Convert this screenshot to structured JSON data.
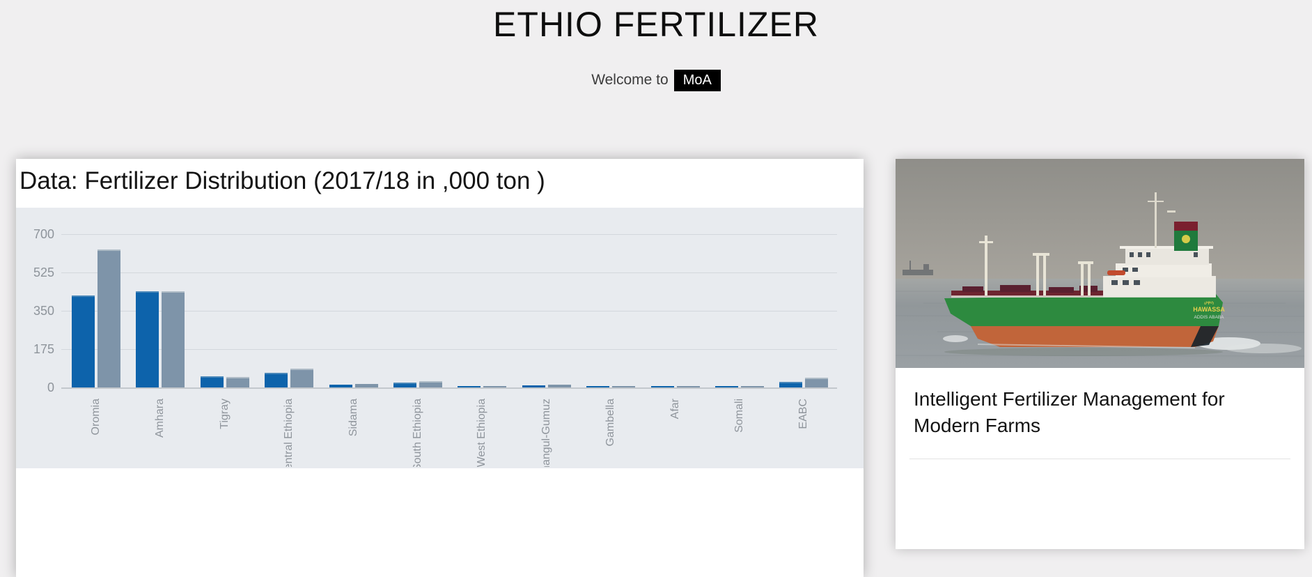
{
  "page": {
    "background": "#f0eff0"
  },
  "header": {
    "title": "ETHIO FERTILIZER",
    "welcome_text": "Welcome to",
    "badge": "MoA",
    "badge_bg": "#000000"
  },
  "chart_card": {
    "title": "Data: Fertilizer Distribution (2017/18 in ,000 ton )"
  },
  "chart_data": {
    "type": "bar",
    "title": "Data: Fertilizer Distribution (2017/18 in ,000 ton )",
    "categories": [
      "Oromia",
      "Amhara",
      "Tigray",
      "Central Ethiopia",
      "Sidama",
      "South Ethiopia",
      "West Ethiopia",
      "Benishangul-Gumuz",
      "Gambella",
      "Afar",
      "Somali",
      "EABC"
    ],
    "series": [
      {
        "name": "blue",
        "color": "#0d63ab",
        "edge": "#4987b9",
        "values": [
          420,
          440,
          50,
          68,
          13,
          21,
          4,
          11,
          6,
          5,
          5,
          25
        ]
      },
      {
        "name": "gray",
        "color": "#7e94a9",
        "edge": "#aebbc6",
        "values": [
          630,
          440,
          48,
          87,
          16,
          30,
          6,
          13,
          6,
          4,
          4,
          45
        ]
      }
    ],
    "ylim": [
      0,
      700
    ],
    "yticks": [
      0,
      175,
      350,
      525,
      700
    ],
    "grid": true,
    "legend_position": "none",
    "plot_background": "#e8ebef",
    "xlabel": "",
    "ylabel": ""
  },
  "side_card": {
    "heading": "Intelligent Fertilizer Management for Modern Farms",
    "image": {
      "description": "Green and orange cargo tanker ship at sea",
      "ship_name_amharic": "ሀዋሳ",
      "ship_name": "HAWASSA",
      "ship_port": "ADDIS ABABA"
    }
  }
}
